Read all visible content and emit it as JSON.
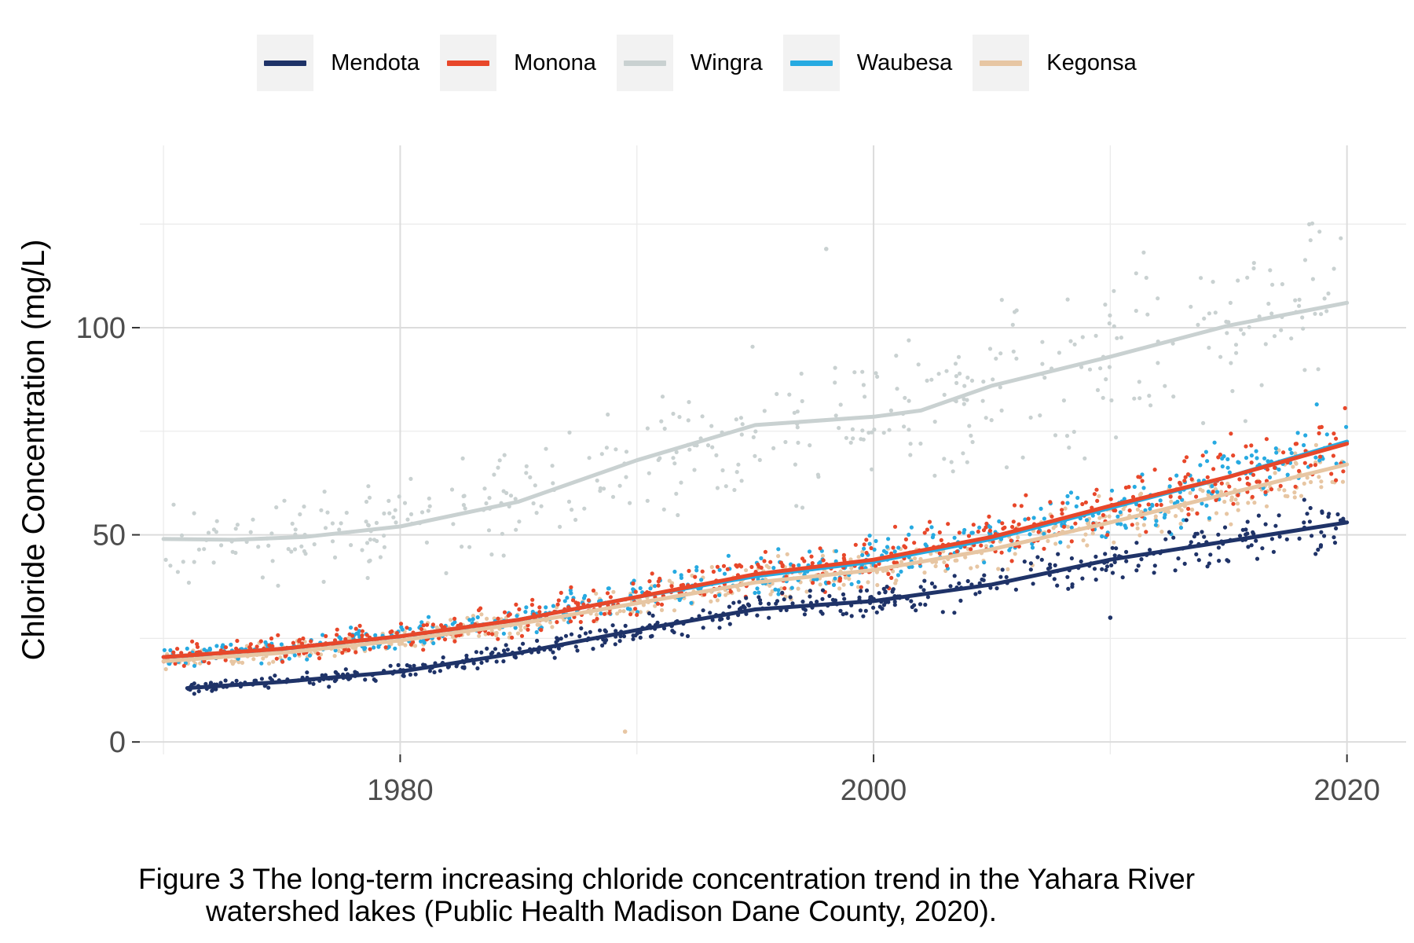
{
  "chart_data": {
    "type": "scatter",
    "title": "",
    "xlabel": "",
    "ylabel": "Chloride Concentration (mg/L)",
    "xlim": [
      1969,
      2022.5
    ],
    "ylim": [
      -3,
      144
    ],
    "x_ticks": [
      1980,
      2000,
      2020
    ],
    "x_tick_labels": [
      "1980",
      "2000",
      "2020"
    ],
    "y_ticks": [
      0,
      50,
      100
    ],
    "y_tick_labels": [
      "0",
      "50",
      "100"
    ],
    "x_minor_ticks": [
      1970,
      1990,
      2010
    ],
    "y_minor_ticks": [
      25,
      75,
      125
    ],
    "grid": true,
    "legend_position": "top",
    "overlay": "points with smoothed trend lines",
    "series": [
      {
        "name": "Mendota",
        "color": "#1f3368",
        "trend": [
          [
            1971,
            13
          ],
          [
            1975,
            14.5
          ],
          [
            1980,
            17
          ],
          [
            1985,
            21.5
          ],
          [
            1990,
            27
          ],
          [
            1995,
            32
          ],
          [
            2000,
            34
          ],
          [
            2005,
            38
          ],
          [
            2010,
            44
          ],
          [
            2015,
            48.5
          ],
          [
            2020,
            53
          ]
        ]
      },
      {
        "name": "Monona",
        "color": "#e8472a",
        "trend": [
          [
            1970,
            20.5
          ],
          [
            1975,
            22.5
          ],
          [
            1980,
            25.5
          ],
          [
            1985,
            29.5
          ],
          [
            1990,
            35
          ],
          [
            1995,
            40.5
          ],
          [
            2000,
            44
          ],
          [
            2005,
            49.5
          ],
          [
            2010,
            57
          ],
          [
            2015,
            64
          ],
          [
            2020,
            72
          ]
        ]
      },
      {
        "name": "Wingra",
        "color": "#c9d1d1",
        "trend": [
          [
            1970,
            49
          ],
          [
            1973,
            48.8
          ],
          [
            1976,
            49.5
          ],
          [
            1980,
            52
          ],
          [
            1985,
            58
          ],
          [
            1990,
            68
          ],
          [
            1995,
            76.5
          ],
          [
            2000,
            78.5
          ],
          [
            2002,
            80
          ],
          [
            2005,
            86
          ],
          [
            2010,
            93
          ],
          [
            2015,
            100.5
          ],
          [
            2020,
            106
          ]
        ]
      },
      {
        "name": "Waubesa",
        "color": "#27aae1",
        "trend": [
          [
            1970,
            20.5
          ],
          [
            1975,
            22.5
          ],
          [
            1980,
            25.5
          ],
          [
            1985,
            29.5
          ],
          [
            1990,
            35
          ],
          [
            1995,
            40
          ],
          [
            2000,
            43.5
          ],
          [
            2005,
            49
          ],
          [
            2010,
            56.5
          ],
          [
            2015,
            64
          ],
          [
            2020,
            72.5
          ]
        ]
      },
      {
        "name": "Kegonsa",
        "color": "#e7c6a3",
        "trend": [
          [
            1970,
            19.5
          ],
          [
            1975,
            21.5
          ],
          [
            1980,
            24.5
          ],
          [
            1985,
            28.5
          ],
          [
            1990,
            33.5
          ],
          [
            1995,
            38.5
          ],
          [
            2000,
            41.5
          ],
          [
            2005,
            46.5
          ],
          [
            2010,
            53
          ],
          [
            2015,
            60
          ],
          [
            2020,
            67
          ]
        ]
      }
    ],
    "outliers": [
      {
        "series": "Kegonsa",
        "x": 1989.5,
        "y": 2.5
      },
      {
        "series": "Mendota",
        "x": 2010,
        "y": 30
      },
      {
        "series": "Wingra",
        "x": 1998,
        "y": 119
      }
    ]
  },
  "caption": {
    "line1": "Figure 3 The long-term increasing chloride concentration trend in the Yahara River",
    "line2": "watershed lakes (Public Health Madison Dane County, 2020)."
  }
}
